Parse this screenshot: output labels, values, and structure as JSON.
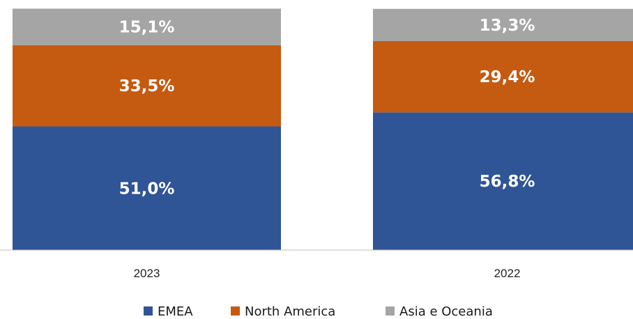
{
  "chart_data": {
    "type": "bar",
    "stacked": true,
    "categories": [
      "2023",
      "2022"
    ],
    "series": [
      {
        "name": "EMEA",
        "color": "#2f5597",
        "values": [
          51.0,
          56.8
        ],
        "labels": [
          "51,0%",
          "56,8%"
        ]
      },
      {
        "name": "North America",
        "color": "#c55a11",
        "values": [
          33.5,
          29.4
        ],
        "labels": [
          "33,5%",
          "29,4%"
        ]
      },
      {
        "name": "Asia e Oceania",
        "color": "#a5a5a5",
        "values": [
          15.1,
          13.3
        ],
        "labels": [
          "15,1%",
          "13,3%"
        ]
      }
    ],
    "grid": false,
    "legend_position": "bottom"
  }
}
